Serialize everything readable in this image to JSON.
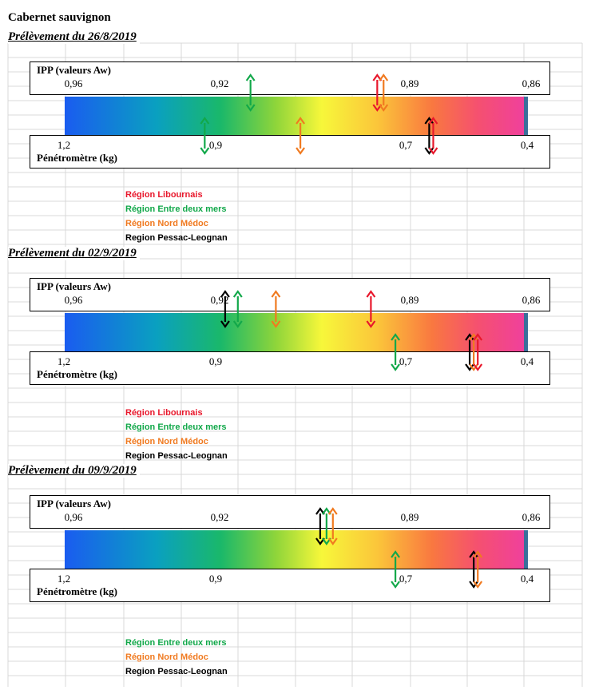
{
  "title": "Cabernet sauvignon",
  "axes": {
    "top_title": "IPP (valeurs Aw)",
    "top_ticks": [
      "0,96",
      "0,92",
      "0,89",
      "0,86"
    ],
    "bottom_title": "Pénétromètre (kg)",
    "bottom_ticks": [
      "1,2",
      "0,9",
      "0,7",
      "0,4"
    ]
  },
  "colors": {
    "Région Libournais": "#e8182c",
    "Région Entre deux mers": "#12a84a",
    "Région Nord Médoc": "#f07a20",
    "Region Pessac-Leognan": "#000000"
  },
  "chart_data": [
    {
      "type": "scatter",
      "title": "Prélèvement du 26/8/2019",
      "legend": [
        "Région Libournais",
        "Région Entre deux mers",
        "Région Nord Médoc",
        "Region Pessac-Leognan"
      ],
      "ipp": [
        {
          "region": "Région Entre deux mers",
          "value": 0.915
        },
        {
          "region": "Région Libournais",
          "value": 0.895
        },
        {
          "region": "Région Nord Médoc",
          "value": 0.894
        }
      ],
      "penetrometre": [
        {
          "region": "Région Entre deux mers",
          "value": 0.92
        },
        {
          "region": "Région Nord Médoc",
          "value": 0.81
        },
        {
          "region": "Region Pessac-Leognan",
          "value": 0.64
        },
        {
          "region": "Région Libournais",
          "value": 0.63
        }
      ]
    },
    {
      "type": "scatter",
      "title": "Prélèvement du 02/9/2019",
      "legend": [
        "Région Libournais",
        "Région Entre deux mers",
        "Région Nord Médoc",
        "Region Pessac-Leognan"
      ],
      "ipp": [
        {
          "region": "Region Pessac-Leognan",
          "value": 0.919
        },
        {
          "region": "Région Entre deux mers",
          "value": 0.917
        },
        {
          "region": "Région Nord Médoc",
          "value": 0.911
        },
        {
          "region": "Région Libournais",
          "value": 0.896
        }
      ],
      "penetrometre": [
        {
          "region": "Région Entre deux mers",
          "value": 0.71
        },
        {
          "region": "Region Pessac-Leognan",
          "value": 0.54
        },
        {
          "region": "Région Nord Médoc",
          "value": 0.53
        },
        {
          "region": "Région Libournais",
          "value": 0.52
        }
      ]
    },
    {
      "type": "scatter",
      "title": "Prélèvement du 09/9/2019",
      "legend": [
        "Région Entre deux mers",
        "Région Nord Médoc",
        "Region Pessac-Leognan"
      ],
      "ipp": [
        {
          "region": "Region Pessac-Leognan",
          "value": 0.904
        },
        {
          "region": "Région Entre deux mers",
          "value": 0.903
        },
        {
          "region": "Région Nord Médoc",
          "value": 0.902
        }
      ],
      "penetrometre": [
        {
          "region": "Région Entre deux mers",
          "value": 0.71
        },
        {
          "region": "Region Pessac-Leognan",
          "value": 0.53
        },
        {
          "region": "Région Nord Médoc",
          "value": 0.52
        }
      ]
    }
  ]
}
